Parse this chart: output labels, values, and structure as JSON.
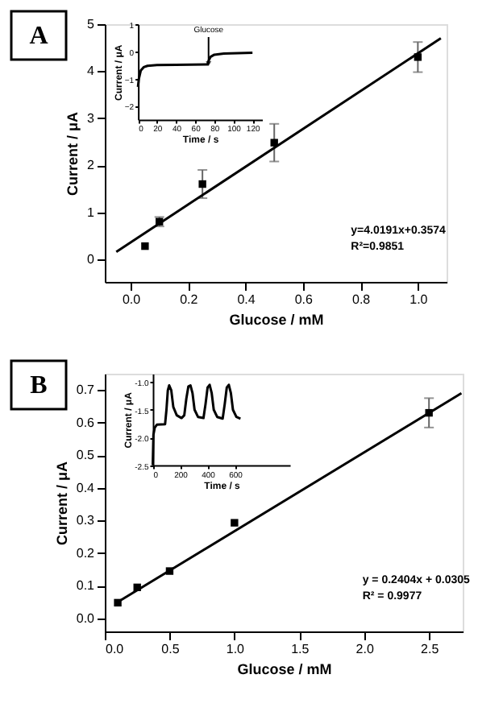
{
  "chart_data": [
    {
      "type": "scatter",
      "title": "A",
      "xlabel": "Glucose / mM",
      "ylabel": "Current / μA",
      "grid": false,
      "xlim": [
        -0.09,
        1.1
      ],
      "xticks": [
        {
          "value": 0,
          "label": "0.0"
        },
        0.2,
        0.4,
        0.6,
        0.8,
        {
          "value": 1,
          "label": "1.0"
        }
      ],
      "ylim": [
        -0.48,
        5
      ],
      "yticks": [
        0,
        1,
        2,
        3,
        4,
        5
      ],
      "annotations": [
        "y=4.0191x+0.3574",
        "R²=0.9851"
      ],
      "series": [
        {
          "type": "scatter",
          "marker": "square",
          "color": "#000000",
          "x": [
            0.05,
            0.1,
            0.25,
            0.5,
            1.0
          ],
          "values": [
            0.28,
            0.8,
            1.6,
            2.48,
            4.3
          ],
          "errors": [
            null,
            0.1,
            0.3,
            0.4,
            0.32
          ]
        },
        {
          "type": "line",
          "color": "#000000",
          "x": [
            -0.05,
            1.08
          ],
          "values": [
            0.16,
            4.7
          ]
        }
      ]
    },
    {
      "type": "line",
      "xlabel": "Time / s",
      "ylabel": "Current / μA",
      "grid": false,
      "xlim": [
        0,
        130
      ],
      "xticks": [
        0,
        20,
        40,
        60,
        80,
        100,
        120
      ],
      "ylim": [
        -2.5,
        1
      ],
      "yticks": [
        -2,
        -1,
        0,
        1
      ],
      "annotations": [
        {
          "text": "Glucose",
          "x": 74,
          "y": -0.45
        }
      ],
      "series": [
        {
          "color": "#000000",
          "x": [
            0,
            1,
            3,
            6,
            10,
            20,
            40,
            73,
            74,
            76,
            80,
            90,
            120
          ],
          "values": [
            -1.3,
            -1.0,
            -0.7,
            -0.58,
            -0.53,
            -0.5,
            -0.49,
            -0.48,
            -0.35,
            -0.2,
            -0.12,
            -0.08,
            -0.05
          ]
        }
      ]
    },
    {
      "type": "scatter",
      "title": "B",
      "xlabel": "Glucose / mM",
      "ylabel": "Current / μA",
      "grid": false,
      "xlim": [
        0,
        2.76
      ],
      "xticks": [
        {
          "value": 0,
          "label": "0.0"
        },
        0.5,
        {
          "value": 1,
          "label": "1.0"
        },
        1.5,
        {
          "value": 2,
          "label": "2.0"
        },
        2.5
      ],
      "ylim": [
        -0.04,
        0.75
      ],
      "yticks": [
        {
          "value": 0,
          "label": "0.0"
        },
        0.1,
        0.2,
        0.3,
        0.4,
        0.5,
        0.6,
        0.7
      ],
      "annotations": [
        "y = 0.2404x + 0.0305",
        "R² = 0.9977"
      ],
      "series": [
        {
          "type": "scatter",
          "marker": "square",
          "color": "#000000",
          "x": [
            0.1,
            0.25,
            0.5,
            1.0,
            2.5
          ],
          "values": [
            0.048,
            0.095,
            0.145,
            0.293,
            0.63
          ],
          "errors": [
            null,
            null,
            null,
            null,
            0.045
          ]
        },
        {
          "type": "line",
          "color": "#000000",
          "x": [
            0.1,
            2.75
          ],
          "values": [
            0.05,
            0.69
          ]
        }
      ]
    },
    {
      "type": "line",
      "xlabel": "Time / s",
      "ylabel": "Current / μA",
      "grid": false,
      "xlim": [
        0,
        1000
      ],
      "xticks": [
        0,
        200,
        400,
        600
      ],
      "ylim": [
        -2.5,
        -0.85
      ],
      "yticks": [
        {
          "value": -2.5,
          "label": "-2.5"
        },
        {
          "value": -2,
          "label": "-2.0"
        },
        {
          "value": -1.5,
          "label": "-1.5"
        },
        {
          "value": -1,
          "label": "-1.0"
        }
      ],
      "series": [
        {
          "color": "#000000",
          "x": [
            0,
            5,
            15,
            30,
            90,
            100,
            110,
            120,
            135,
            150,
            175,
            210,
            230,
            245,
            260,
            275,
            290,
            305,
            330,
            370,
            385,
            400,
            415,
            430,
            445,
            470,
            510,
            525,
            540,
            555,
            570,
            585,
            610,
            640
          ],
          "values": [
            -2.5,
            -1.95,
            -1.82,
            -1.77,
            -1.76,
            -1.5,
            -1.15,
            -1.06,
            -1.15,
            -1.45,
            -1.6,
            -1.65,
            -1.6,
            -1.3,
            -1.08,
            -1.06,
            -1.2,
            -1.5,
            -1.63,
            -1.65,
            -1.4,
            -1.1,
            -1.05,
            -1.2,
            -1.5,
            -1.63,
            -1.66,
            -1.4,
            -1.1,
            -1.05,
            -1.2,
            -1.5,
            -1.63,
            -1.66
          ]
        }
      ]
    }
  ]
}
